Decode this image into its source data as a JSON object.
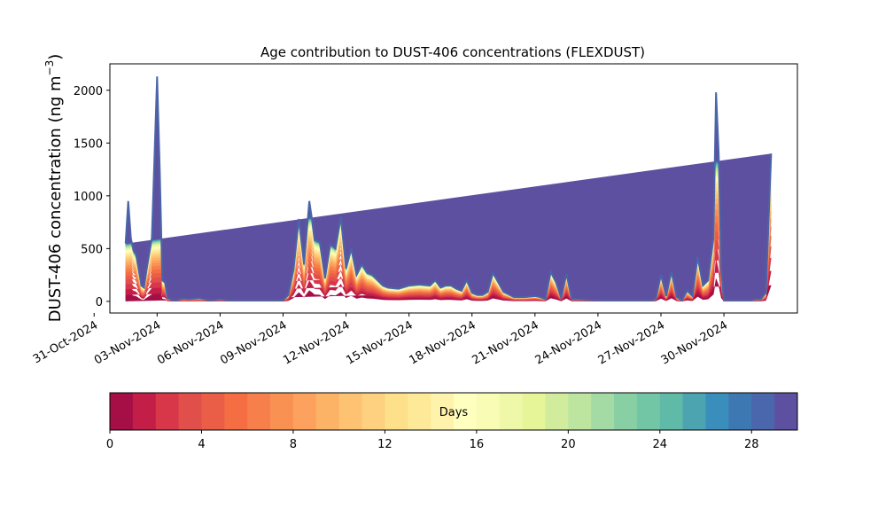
{
  "chart_data": {
    "type": "area",
    "title": "Age contribution to DUST-406 concentrations (FLEXDUST)",
    "ylabel": "DUST-406 concentration (ng m",
    "ylabel_sup": "−3",
    "ylabel_close": ")",
    "xlabel": "",
    "ylim": [
      -110,
      2250
    ],
    "xlim": [
      "2024-10-31T18:00",
      "2024-12-03T12:00"
    ],
    "y_ticks": [
      0,
      500,
      1000,
      1500,
      2000
    ],
    "x_ticks": [
      {
        "date": "2024-10-31",
        "label": "31-Oct-2024"
      },
      {
        "date": "2024-11-03",
        "label": "03-Nov-2024"
      },
      {
        "date": "2024-11-06",
        "label": "06-Nov-2024"
      },
      {
        "date": "2024-11-09",
        "label": "09-Nov-2024"
      },
      {
        "date": "2024-11-12",
        "label": "12-Nov-2024"
      },
      {
        "date": "2024-11-15",
        "label": "15-Nov-2024"
      },
      {
        "date": "2024-11-18",
        "label": "18-Nov-2024"
      },
      {
        "date": "2024-11-21",
        "label": "21-Nov-2024"
      },
      {
        "date": "2024-11-24",
        "label": "24-Nov-2024"
      },
      {
        "date": "2024-11-27",
        "label": "27-Nov-2024"
      },
      {
        "date": "2024-11-30",
        "label": "30-Nov-2024"
      }
    ],
    "total_line_color": "#4a65a8",
    "x": [
      "2024-11-01T12:00",
      "2024-11-01T15:00",
      "2024-11-01T18:00",
      "2024-11-01T21:00",
      "2024-11-02T00:00",
      "2024-11-02T06:00",
      "2024-11-02T09:00",
      "2024-11-02T12:00",
      "2024-11-02T18:00",
      "2024-11-03T00:00",
      "2024-11-03T03:00",
      "2024-11-03T06:00",
      "2024-11-03T09:00",
      "2024-11-03T12:00",
      "2024-11-03T15:00",
      "2024-11-03T18:00",
      "2024-11-03T21:00",
      "2024-11-04T00:00",
      "2024-11-04T03:00",
      "2024-11-04T06:00",
      "2024-11-04T12:00",
      "2024-11-05T00:00",
      "2024-11-05T12:00",
      "2024-11-06T00:00",
      "2024-11-06T12:00",
      "2024-11-07T00:00",
      "2024-11-07T12:00",
      "2024-11-08T00:00",
      "2024-11-08T12:00",
      "2024-11-09T00:00",
      "2024-11-09T06:00",
      "2024-11-09T12:00",
      "2024-11-09T18:00",
      "2024-11-10T00:00",
      "2024-11-10T06:00",
      "2024-11-10T09:00",
      "2024-11-10T12:00",
      "2024-11-10T18:00",
      "2024-11-11T00:00",
      "2024-11-11T06:00",
      "2024-11-11T12:00",
      "2024-11-11T18:00",
      "2024-11-12T00:00",
      "2024-11-12T06:00",
      "2024-11-12T12:00",
      "2024-11-12T18:00",
      "2024-11-13T00:00",
      "2024-11-13T06:00",
      "2024-11-13T12:00",
      "2024-11-13T18:00",
      "2024-11-14T00:00",
      "2024-11-14T12:00",
      "2024-11-15T00:00",
      "2024-11-15T12:00",
      "2024-11-16T00:00",
      "2024-11-16T06:00",
      "2024-11-16T12:00",
      "2024-11-16T18:00",
      "2024-11-17T00:00",
      "2024-11-17T06:00",
      "2024-11-17T12:00",
      "2024-11-17T18:00",
      "2024-11-18T00:00",
      "2024-11-18T06:00",
      "2024-11-18T12:00",
      "2024-11-18T18:00",
      "2024-11-19T00:00",
      "2024-11-19T12:00",
      "2024-11-20T00:00",
      "2024-11-20T12:00",
      "2024-11-21T00:00",
      "2024-11-21T06:00",
      "2024-11-21T12:00",
      "2024-11-21T18:00",
      "2024-11-22T00:00",
      "2024-11-22T06:00",
      "2024-11-22T12:00",
      "2024-11-22T18:00",
      "2024-11-23T00:00",
      "2024-11-24T00:00",
      "2024-11-25T00:00",
      "2024-11-26T00:00",
      "2024-11-26T12:00",
      "2024-11-26T18:00",
      "2024-11-27T00:00",
      "2024-11-27T06:00",
      "2024-11-27T12:00",
      "2024-11-27T18:00",
      "2024-11-28T00:00",
      "2024-11-28T06:00",
      "2024-11-28T12:00",
      "2024-11-28T18:00",
      "2024-11-29T00:00",
      "2024-11-29T06:00",
      "2024-11-29T12:00",
      "2024-11-29T15:00",
      "2024-11-29T18:00",
      "2024-11-29T21:00",
      "2024-11-30T00:00",
      "2024-11-30T06:00",
      "2024-11-30T12:00",
      "2024-11-30T18:00",
      "2024-12-01T00:00",
      "2024-12-01T06:00",
      "2024-12-01T12:00",
      "2024-12-01T18:00",
      "2024-12-02T00:00",
      "2024-12-02T06:00",
      "2024-12-02T09:00"
    ],
    "total": [
      550,
      950,
      600,
      480,
      440,
      150,
      130,
      300,
      600,
      2130,
      1250,
      200,
      180,
      30,
      20,
      10,
      10,
      15,
      20,
      25,
      20,
      30,
      10,
      20,
      10,
      10,
      10,
      10,
      10,
      10,
      60,
      300,
      780,
      350,
      950,
      780,
      580,
      560,
      220,
      540,
      500,
      800,
      310,
      500,
      250,
      350,
      270,
      250,
      200,
      150,
      130,
      120,
      150,
      160,
      150,
      200,
      130,
      150,
      150,
      120,
      100,
      200,
      80,
      60,
      60,
      90,
      270,
      90,
      40,
      40,
      50,
      40,
      20,
      280,
      180,
      30,
      260,
      20,
      20,
      10,
      10,
      10,
      10,
      20,
      250,
      50,
      280,
      40,
      10,
      100,
      50,
      420,
      150,
      200,
      600,
      1980,
      1400,
      300,
      10,
      10,
      10,
      10,
      10,
      10,
      20,
      20,
      80,
      1400
    ],
    "colorbar": {
      "label": "Days",
      "min": 0,
      "max": 30,
      "n_bins": 30,
      "ticks": [
        0,
        4,
        8,
        12,
        16,
        20,
        24,
        28
      ],
      "colors": [
        "#a50f45",
        "#c21e48",
        "#d8374a",
        "#e04f4a",
        "#ea5e47",
        "#f46d43",
        "#f67f4b",
        "#f99153",
        "#fca25e",
        "#fdb365",
        "#fdc372",
        "#fdd17f",
        "#fee08b",
        "#fee999",
        "#fff2aa",
        "#ffffbf",
        "#f8fcb5",
        "#eef8a8",
        "#e6f598",
        "#d0ec9c",
        "#bde5a0",
        "#a4daa4",
        "#88cfa4",
        "#72c6a5",
        "#5fbaa8",
        "#4da4b1",
        "#3a8ebb",
        "#3d78b3",
        "#4a66ac",
        "#5e50a1"
      ]
    }
  }
}
